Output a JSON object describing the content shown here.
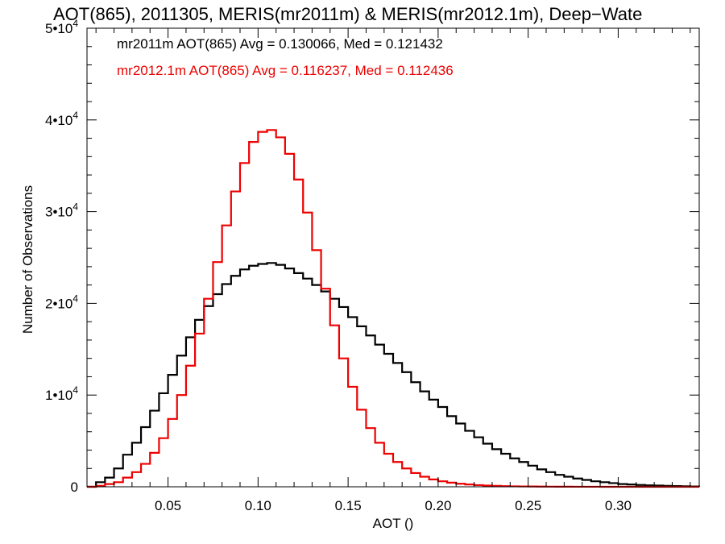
{
  "chart_data": {
    "type": "line",
    "title": "AOT(865), 2011305, MERIS(mr2011m) & MERIS(mr2012.1m), Deep−Wate",
    "xlabel": "AOT ()",
    "ylabel": "Number of Observations",
    "xlim": [
      0.005,
      0.345
    ],
    "ylim": [
      0,
      50000
    ],
    "x_ticks": [
      {
        "value": 0.05,
        "label": "0.05"
      },
      {
        "value": 0.1,
        "label": "0.10"
      },
      {
        "value": 0.15,
        "label": "0.15"
      },
      {
        "value": 0.2,
        "label": "0.20"
      },
      {
        "value": 0.25,
        "label": "0.25"
      },
      {
        "value": 0.3,
        "label": "0.30"
      }
    ],
    "y_ticks": [
      {
        "value": 0,
        "label": "0"
      },
      {
        "value": 10000,
        "mantissa": "1•10",
        "exponent": "4"
      },
      {
        "value": 20000,
        "mantissa": "2•10",
        "exponent": "4"
      },
      {
        "value": 30000,
        "mantissa": "3•10",
        "exponent": "4"
      },
      {
        "value": 40000,
        "mantissa": "4•10",
        "exponent": "4"
      },
      {
        "value": 50000,
        "mantissa": "5•10",
        "exponent": "4"
      }
    ],
    "grid": false,
    "legend_placement": "top-left",
    "annotations": [
      {
        "text": "mr2011m AOT(865) Avg = 0.130066, Med = 0.121432",
        "color": "#000000"
      },
      {
        "text": "mr2012.1m AOT(865) Avg = 0.116237, Med = 0.112436",
        "color": "#ee0000"
      }
    ],
    "series": [
      {
        "color": "#000000",
        "style": "step",
        "x": [
          0.005,
          0.01,
          0.015,
          0.02,
          0.025,
          0.03,
          0.035,
          0.04,
          0.045,
          0.05,
          0.055,
          0.06,
          0.065,
          0.07,
          0.075,
          0.08,
          0.085,
          0.09,
          0.095,
          0.1,
          0.105,
          0.11,
          0.115,
          0.12,
          0.125,
          0.13,
          0.135,
          0.14,
          0.145,
          0.15,
          0.155,
          0.16,
          0.165,
          0.17,
          0.175,
          0.18,
          0.185,
          0.19,
          0.195,
          0.2,
          0.205,
          0.21,
          0.215,
          0.22,
          0.225,
          0.23,
          0.235,
          0.24,
          0.245,
          0.25,
          0.255,
          0.26,
          0.265,
          0.27,
          0.275,
          0.28,
          0.285,
          0.29,
          0.295,
          0.3,
          0.305,
          0.31,
          0.315,
          0.32,
          0.325,
          0.33,
          0.335,
          0.34,
          0.345
        ],
        "values": [
          0,
          500,
          1000,
          2000,
          3500,
          4800,
          6500,
          8300,
          10200,
          12200,
          14300,
          16300,
          18200,
          19700,
          21000,
          22100,
          23000,
          23700,
          24100,
          24300,
          24400,
          24200,
          23800,
          23300,
          22700,
          22000,
          21300,
          20500,
          19600,
          18500,
          17500,
          16500,
          15500,
          14500,
          13500,
          12500,
          11400,
          10400,
          9500,
          8700,
          7700,
          6900,
          6100,
          5400,
          4700,
          4100,
          3600,
          3100,
          2700,
          2300,
          1900,
          1600,
          1300,
          1100,
          900,
          750,
          600,
          500,
          400,
          300,
          250,
          200,
          160,
          130,
          100,
          80,
          60,
          40,
          20
        ]
      },
      {
        "color": "#ee0000",
        "style": "step",
        "x": [
          0.005,
          0.01,
          0.015,
          0.02,
          0.025,
          0.03,
          0.035,
          0.04,
          0.045,
          0.05,
          0.055,
          0.06,
          0.065,
          0.07,
          0.075,
          0.08,
          0.085,
          0.09,
          0.095,
          0.1,
          0.105,
          0.11,
          0.115,
          0.12,
          0.125,
          0.13,
          0.135,
          0.14,
          0.145,
          0.15,
          0.155,
          0.16,
          0.165,
          0.17,
          0.175,
          0.18,
          0.185,
          0.19,
          0.195,
          0.2,
          0.205,
          0.21,
          0.215,
          0.22,
          0.225,
          0.23,
          0.235,
          0.24,
          0.245,
          0.25,
          0.255,
          0.26,
          0.265,
          0.27,
          0.275,
          0.28,
          0.285,
          0.29,
          0.295,
          0.3,
          0.305,
          0.31,
          0.315,
          0.32,
          0.325,
          0.33,
          0.335,
          0.34,
          0.345
        ],
        "values": [
          0,
          100,
          300,
          500,
          1000,
          1600,
          2500,
          3700,
          5300,
          7400,
          10000,
          13200,
          16700,
          20500,
          24500,
          28500,
          32200,
          35300,
          37600,
          38700,
          38900,
          38100,
          36300,
          33500,
          29900,
          25800,
          21600,
          17600,
          14000,
          10900,
          8400,
          6400,
          4800,
          3600,
          2700,
          2000,
          1500,
          1100,
          800,
          600,
          450,
          330,
          250,
          180,
          130,
          100,
          70,
          50,
          40,
          30,
          20,
          15,
          10,
          8,
          6,
          5,
          4,
          3,
          2,
          2,
          1,
          1,
          1,
          0,
          0,
          0,
          0,
          0,
          0
        ]
      }
    ]
  }
}
